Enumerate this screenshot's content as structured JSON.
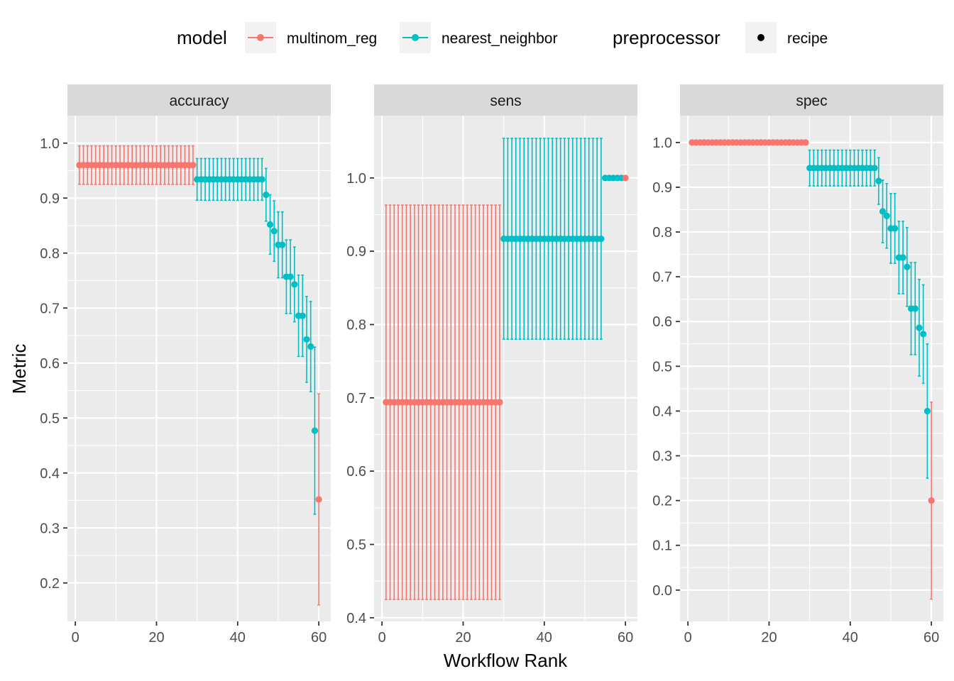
{
  "legend": {
    "model_title": "model",
    "preprocessor_title": "preprocessor",
    "model_items": [
      {
        "label": "multinom_reg",
        "color": "#F8766D"
      },
      {
        "label": "nearest_neighbor",
        "color": "#00BFC4"
      }
    ],
    "preprocessor_items": [
      {
        "label": "recipe",
        "color": "#000000"
      }
    ],
    "position": "top"
  },
  "colors": {
    "panel_bg": "#EBEBEB",
    "strip_bg": "#D9D9D9",
    "grid": "#FFFFFF",
    "text": "#4D4D4D",
    "title_text": "#1A1A1A"
  },
  "chart_data": {
    "type": "scatter",
    "grid": true,
    "xlabel": "Workflow Rank",
    "ylabel": "Metric",
    "xticks": [
      0,
      20,
      40,
      60
    ],
    "xlim": [
      -1.95,
      62.95
    ],
    "series_names": [
      "multinom_reg",
      "nearest_neighbor"
    ],
    "panels": [
      {
        "title": "accuracy",
        "ylim": [
          0.13,
          1.05
        ],
        "yticks": [
          0.2,
          0.3,
          0.4,
          0.5,
          0.6,
          0.7,
          0.8,
          0.9,
          1.0
        ],
        "groups": [
          {
            "series": "multinom_reg",
            "from": 1,
            "to": 29,
            "y": 0.96,
            "lo": 0.925,
            "hi": 0.995
          },
          {
            "series": "nearest_neighbor",
            "from": 30,
            "to": 46,
            "y": 0.934,
            "lo": 0.896,
            "hi": 0.972
          },
          {
            "series": "nearest_neighbor",
            "from": 47,
            "to": 47,
            "y": 0.906,
            "lo": 0.858,
            "hi": 0.954
          },
          {
            "series": "nearest_neighbor",
            "from": 48,
            "to": 48,
            "y": 0.852,
            "lo": 0.798,
            "hi": 0.906
          },
          {
            "series": "nearest_neighbor",
            "from": 49,
            "to": 49,
            "y": 0.84,
            "lo": 0.785,
            "hi": 0.895
          },
          {
            "series": "nearest_neighbor",
            "from": 50,
            "to": 51,
            "y": 0.815,
            "lo": 0.755,
            "hi": 0.875
          },
          {
            "series": "nearest_neighbor",
            "from": 52,
            "to": 53,
            "y": 0.757,
            "lo": 0.69,
            "hi": 0.824
          },
          {
            "series": "nearest_neighbor",
            "from": 54,
            "to": 54,
            "y": 0.743,
            "lo": 0.675,
            "hi": 0.811
          },
          {
            "series": "nearest_neighbor",
            "from": 55,
            "to": 56,
            "y": 0.686,
            "lo": 0.612,
            "hi": 0.76
          },
          {
            "series": "nearest_neighbor",
            "from": 57,
            "to": 57,
            "y": 0.643,
            "lo": 0.565,
            "hi": 0.721
          },
          {
            "series": "nearest_neighbor",
            "from": 58,
            "to": 58,
            "y": 0.63,
            "lo": 0.548,
            "hi": 0.712
          },
          {
            "series": "nearest_neighbor",
            "from": 59,
            "to": 59,
            "y": 0.477,
            "lo": 0.325,
            "hi": 0.629
          },
          {
            "series": "multinom_reg",
            "from": 60,
            "to": 60,
            "y": 0.352,
            "lo": 0.16,
            "hi": 0.544
          }
        ]
      },
      {
        "title": "sens",
        "ylim": [
          0.395,
          1.085
        ],
        "yticks": [
          0.4,
          0.5,
          0.6,
          0.7,
          0.8,
          0.9,
          1.0
        ],
        "groups": [
          {
            "series": "multinom_reg",
            "from": 1,
            "to": 29,
            "y": 0.694,
            "lo": 0.425,
            "hi": 0.963
          },
          {
            "series": "nearest_neighbor",
            "from": 30,
            "to": 54,
            "y": 0.917,
            "lo": 0.78,
            "hi": 1.054
          },
          {
            "series": "nearest_neighbor",
            "from": 55,
            "to": 59,
            "y": 1.0,
            "lo": 1.0,
            "hi": 1.0
          },
          {
            "series": "multinom_reg",
            "from": 60,
            "to": 60,
            "y": 1.0,
            "lo": 1.0,
            "hi": 1.0
          }
        ]
      },
      {
        "title": "spec",
        "ylim": [
          -0.07,
          1.06
        ],
        "yticks": [
          0.0,
          0.1,
          0.2,
          0.3,
          0.4,
          0.5,
          0.6,
          0.7,
          0.8,
          0.9,
          1.0
        ],
        "groups": [
          {
            "series": "multinom_reg",
            "from": 1,
            "to": 29,
            "y": 1.0,
            "lo": 1.0,
            "hi": 1.0
          },
          {
            "series": "nearest_neighbor",
            "from": 30,
            "to": 46,
            "y": 0.943,
            "lo": 0.903,
            "hi": 0.983
          },
          {
            "series": "nearest_neighbor",
            "from": 47,
            "to": 47,
            "y": 0.914,
            "lo": 0.862,
            "hi": 0.966
          },
          {
            "series": "nearest_neighbor",
            "from": 48,
            "to": 48,
            "y": 0.846,
            "lo": 0.776,
            "hi": 0.916
          },
          {
            "series": "nearest_neighbor",
            "from": 49,
            "to": 49,
            "y": 0.836,
            "lo": 0.764,
            "hi": 0.908
          },
          {
            "series": "nearest_neighbor",
            "from": 50,
            "to": 51,
            "y": 0.808,
            "lo": 0.73,
            "hi": 0.886
          },
          {
            "series": "nearest_neighbor",
            "from": 52,
            "to": 53,
            "y": 0.743,
            "lo": 0.662,
            "hi": 0.824
          },
          {
            "series": "nearest_neighbor",
            "from": 54,
            "to": 54,
            "y": 0.722,
            "lo": 0.634,
            "hi": 0.81
          },
          {
            "series": "nearest_neighbor",
            "from": 55,
            "to": 56,
            "y": 0.629,
            "lo": 0.526,
            "hi": 0.732
          },
          {
            "series": "nearest_neighbor",
            "from": 57,
            "to": 57,
            "y": 0.586,
            "lo": 0.478,
            "hi": 0.694
          },
          {
            "series": "nearest_neighbor",
            "from": 58,
            "to": 58,
            "y": 0.572,
            "lo": 0.462,
            "hi": 0.682
          },
          {
            "series": "nearest_neighbor",
            "from": 59,
            "to": 59,
            "y": 0.4,
            "lo": 0.25,
            "hi": 0.55
          },
          {
            "series": "multinom_reg",
            "from": 60,
            "to": 60,
            "y": 0.2,
            "lo": -0.02,
            "hi": 0.42
          }
        ]
      }
    ]
  }
}
